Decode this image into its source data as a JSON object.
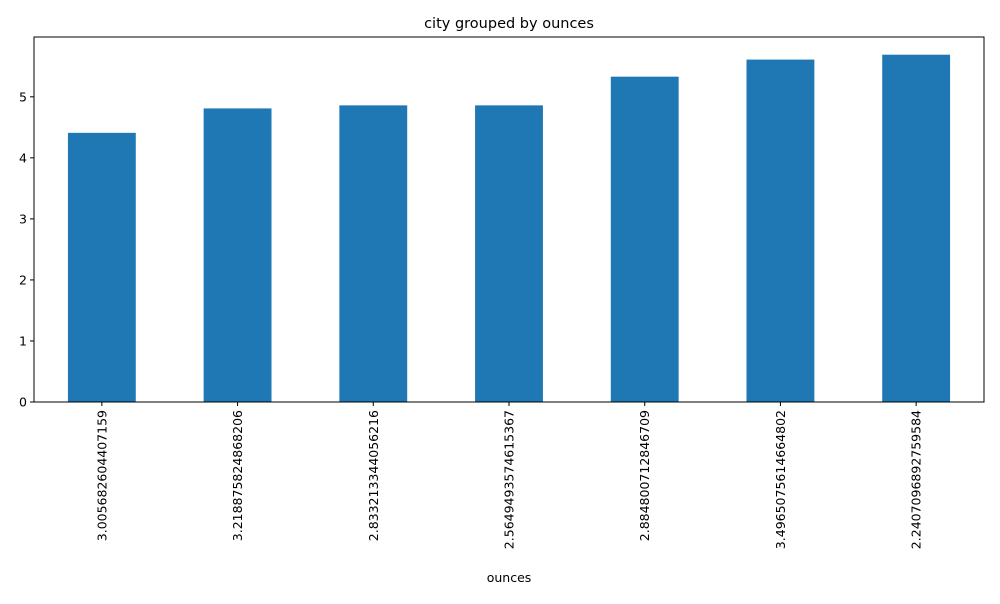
{
  "chart_data": {
    "type": "bar",
    "title": "city grouped by ounces",
    "xlabel": "ounces",
    "ylabel": "",
    "categories": [
      "3.005682604407159",
      "3.218875824868206",
      "2.833213344056216",
      "2.5649493574615367",
      "2.884800712846709",
      "3.4965075614664802",
      "2.2407096892759584"
    ],
    "values": [
      4.41,
      4.81,
      4.86,
      4.86,
      5.33,
      5.61,
      5.69
    ],
    "ylim": [
      0,
      5.98
    ],
    "yticks": [
      0,
      1,
      2,
      3,
      4,
      5
    ],
    "grid": false,
    "bar_color": "#1f77b4"
  }
}
